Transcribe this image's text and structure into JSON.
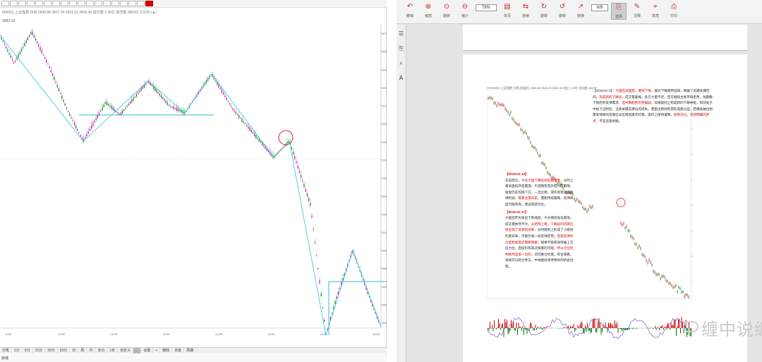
{
  "left_chart": {
    "toolbar_icons": [
      "cursor",
      "draw",
      "line",
      "fib",
      "text",
      "erase",
      "zoom-in",
      "zoom-out",
      "arrow",
      "grid",
      "1m",
      "5m",
      "15m",
      "30m",
      "60m",
      "day",
      "week",
      "color"
    ],
    "info_line": "000001 上证指数 日线 2836.88 2837.99 2831.63 2835.46 成交量 2.35亿 成交额 2862亿 0.02% (▲)",
    "symbol_label": "3083.19",
    "y_axis_ticks": [
      "3075.00",
      "3060.00",
      "3045.00",
      "3030.00",
      "3015.00",
      "3000.00",
      "2985.00",
      "2970.00",
      "2955.00",
      "2940.00",
      "2925.00",
      "2910.00",
      "2895.00",
      "2880.00",
      "2865.00",
      "2850.00",
      "2835.00"
    ],
    "x_axis_ticks": [
      "9:30",
      "10:00",
      "10:30",
      "11:00",
      "13:30",
      "14:00",
      "14:30",
      "15:00"
    ],
    "bottom_tabs": [
      "分笔",
      "1分",
      "5分",
      "15分",
      "30分",
      "60分",
      "日",
      "周",
      "月",
      "多日",
      "1年",
      "自定义",
      "...",
      "设置",
      "+",
      "删除",
      "资金",
      "周期"
    ],
    "active_tab_index": 12,
    "status_text": "就绪"
  },
  "viewer": {
    "toolbar": [
      {
        "icon": "↶",
        "label": "撤销"
      },
      {
        "icon": "⊕",
        "label": "缩放"
      },
      {
        "icon": "⊙",
        "label": "旋转"
      },
      {
        "icon": "⊖",
        "label": "缩小"
      },
      {
        "icon": "▤",
        "label": "单页"
      },
      {
        "icon": "⇆",
        "label": "连续"
      },
      {
        "icon": "↻",
        "label": "旋转"
      },
      {
        "icon": "↺",
        "label": "旋转"
      },
      {
        "icon": "↗",
        "label": "链接"
      },
      {
        "icon": "⎘",
        "label": "选择"
      },
      {
        "icon": "✎",
        "label": "注释"
      },
      {
        "icon": "⌖",
        "label": "高亮"
      },
      {
        "icon": "⎙",
        "label": "打印"
      }
    ],
    "zoom_value": "78%",
    "page_value": "6/8",
    "selected_tool_index": 9,
    "side_icons": [
      "☰",
      "⎘",
      "⌕",
      "A"
    ]
  },
  "document": {
    "chart_header": "SH000001 上证指数 日线 [收盘价] 2836.88 2831.63 2835.46 成交 2.35亿 成交额 2862亿",
    "top_paragraph": [
      {
        "t": "【2019-01-2】：",
        "red": false
      },
      {
        "t": "大盘在早盘后，继续下探，",
        "red": true
      },
      {
        "t": "股价下跌趋势延续，跌破了前期支撑区间，",
        "red": false
      },
      {
        "t": "形成新的下跌段，",
        "red": true
      },
      {
        "t": "成交量萎缩，多方力量不足，空方继续主导市场走势。短期看下探后有反弹需求，",
        "red": false
      },
      {
        "t": "但中期趋势仍然偏弱。",
        "red": true
      },
      {
        "t": "日线级别上构成新的下跌中枢，目前处于中枢下沿附近，注意关键支撑位的得失。若能企稳则有望形成底分型，若继续破位则需等待新的背驰信号出现后再作打算。操作上保持谨慎，",
        "red": false
      },
      {
        "t": "控制仓位，等待明确的买点，",
        "red": true
      },
      {
        "t": "不宜追涨杀跌。",
        "red": false
      }
    ],
    "mid_heading_1": "【2019-01-14】",
    "mid_paragraph_1": [
      {
        "t": "先说结论，",
        "red": false
      },
      {
        "t": "今天大盘下跌延续前期走势，",
        "red": true
      },
      {
        "t": "分时上看早盘低开后震荡，午后略有回升但力度有限，收盘仍在均线下方。一旦企稳，或许会有短线反弹机会。",
        "red": false
      },
      {
        "t": "需要注意的是，",
        "red": true
      },
      {
        "t": "量能持续萎缩，反弹高度可能有限，建议观望为主。",
        "red": false
      }
    ],
    "mid_heading_2": "【2019-01-17】",
    "mid_paragraph_2": [
      {
        "t": "大盘在昨天收出下影线后，今天继续低位震荡，成交量依然不大。",
        "red": false
      },
      {
        "t": "从结构上看，下跌段的内部已经出现了背驰的迹象，",
        "red": true
      },
      {
        "t": "分时级别上形成了小级别的底背离，可能引发一段反弹走势。",
        "red": false
      },
      {
        "t": "但是反弹的力度和高度还需要观察，",
        "red": true
      },
      {
        "t": "如果不能有效突破上方压力位，后续仍有再次探底的可能，",
        "red": false
      },
      {
        "t": "所以仓位控制依然是第一位的，",
        "red": true
      },
      {
        "t": "切勿重仓抄底。综合来看，短线可以轻仓参与，中线继续等待更好的机会出现。",
        "red": false
      }
    ],
    "watermark": "缠中说缠"
  },
  "colors": {
    "candle": "#c000c0",
    "stroke_line": "#40c8e8",
    "hline": "#30b8d8",
    "circle": "#e02020",
    "osc_up": "#d00000",
    "osc_down": "#007000",
    "doc_red": "#d00000"
  }
}
